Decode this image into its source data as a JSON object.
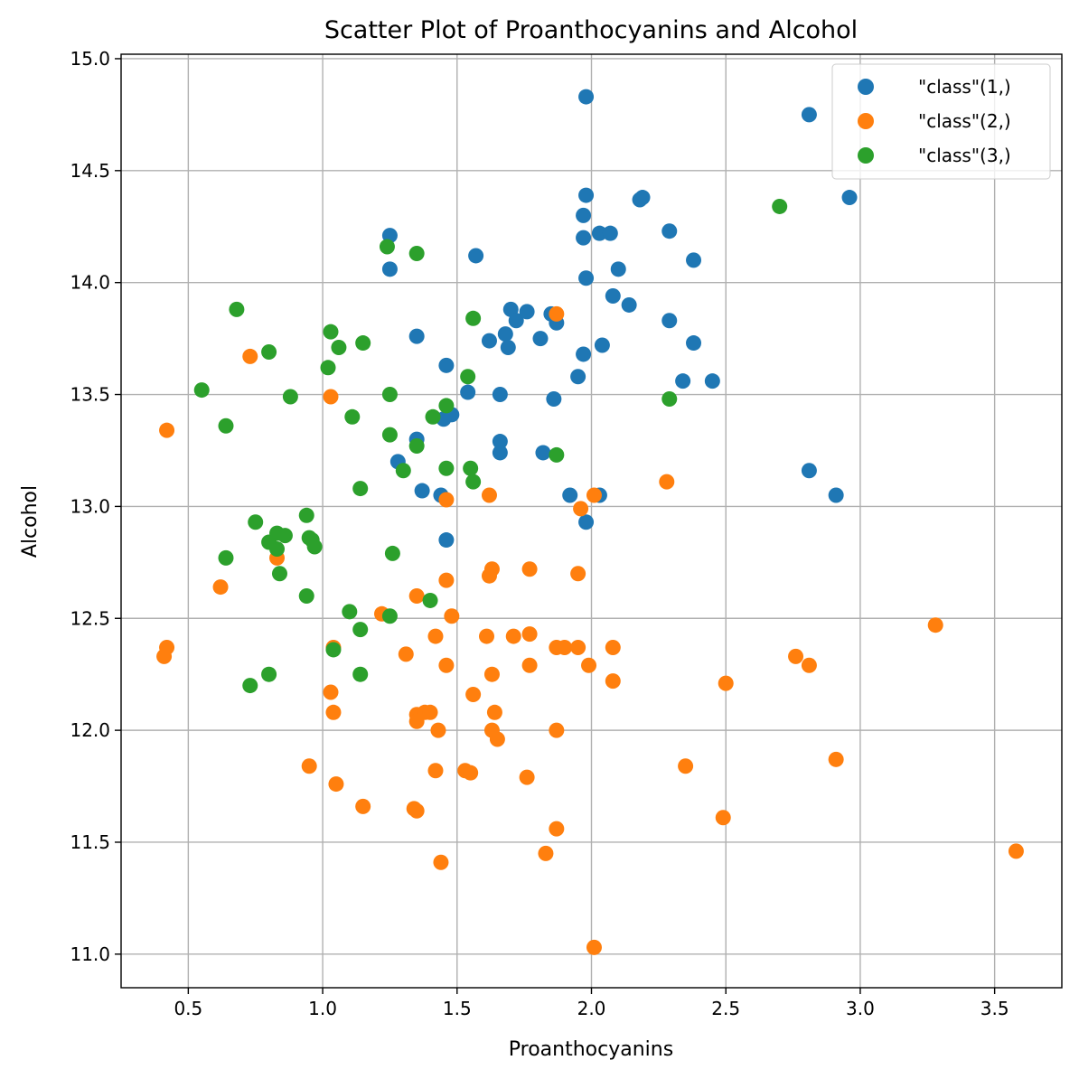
{
  "chart_data": {
    "type": "scatter",
    "title": "Scatter Plot of Proanthocyanins and Alcohol",
    "xlabel": "Proanthocyanins",
    "ylabel": "Alcohol",
    "xlim": [
      0.25,
      3.75
    ],
    "ylim": [
      10.85,
      15.02
    ],
    "xticks": [
      0.5,
      1.0,
      1.5,
      2.0,
      2.5,
      3.0,
      3.5
    ],
    "xtick_labels": [
      "0.5",
      "1.0",
      "1.5",
      "2.0",
      "2.5",
      "3.0",
      "3.5"
    ],
    "yticks": [
      11.0,
      11.5,
      12.0,
      12.5,
      13.0,
      13.5,
      14.0,
      14.5,
      15.0
    ],
    "ytick_labels": [
      "11.0",
      "11.5",
      "12.0",
      "12.5",
      "13.0",
      "13.5",
      "14.0",
      "14.5",
      "15.0"
    ],
    "grid": true,
    "legend_position": "top-right",
    "series": [
      {
        "name": "\"class\"(1,)",
        "color": "#1f77b4",
        "x": [
          1.98,
          2.81,
          2.96,
          1.98,
          2.19,
          2.18,
          1.97,
          1.25,
          2.29,
          1.97,
          2.03,
          2.07,
          1.25,
          2.38,
          1.57,
          1.98,
          2.1,
          2.08,
          2.14,
          1.7,
          1.76,
          1.72,
          1.85,
          1.87,
          1.35,
          2.29,
          1.68,
          1.62,
          1.81,
          2.38,
          1.69,
          1.97,
          2.04,
          1.46,
          1.95,
          2.34,
          2.45,
          1.54,
          1.66,
          1.86,
          1.48,
          1.45,
          1.35,
          1.66,
          1.82,
          1.66,
          1.28,
          2.81,
          1.37,
          1.44,
          1.92,
          2.03,
          2.91,
          1.98,
          1.46
        ],
        "y": [
          14.83,
          14.75,
          14.38,
          14.39,
          14.38,
          14.37,
          14.3,
          14.21,
          14.23,
          14.2,
          14.22,
          14.22,
          14.06,
          14.1,
          14.12,
          14.02,
          14.06,
          13.94,
          13.9,
          13.88,
          13.87,
          13.83,
          13.86,
          13.82,
          13.76,
          13.83,
          13.77,
          13.74,
          13.75,
          13.73,
          13.71,
          13.68,
          13.72,
          13.63,
          13.58,
          13.56,
          13.56,
          13.51,
          13.5,
          13.48,
          13.41,
          13.39,
          13.3,
          13.29,
          13.24,
          13.24,
          13.2,
          13.16,
          13.07,
          13.05,
          13.05,
          13.05,
          13.05,
          12.93,
          12.85
        ]
      },
      {
        "name": "\"class\"(2,)",
        "color": "#ff7f0e",
        "x": [
          1.87,
          0.73,
          1.03,
          0.42,
          2.28,
          1.46,
          1.62,
          2.01,
          1.96,
          0.83,
          1.77,
          1.63,
          1.62,
          1.95,
          1.46,
          0.62,
          1.35,
          1.48,
          1.22,
          3.28,
          1.42,
          1.61,
          1.71,
          1.77,
          1.87,
          1.9,
          1.95,
          2.08,
          1.04,
          0.42,
          1.31,
          2.76,
          0.41,
          1.46,
          2.81,
          1.77,
          1.99,
          2.08,
          2.5,
          1.63,
          1.03,
          1.56,
          1.35,
          1.38,
          1.4,
          1.64,
          1.04,
          1.35,
          1.43,
          1.63,
          1.87,
          1.65,
          2.91,
          0.95,
          2.35,
          1.42,
          1.53,
          1.55,
          1.76,
          1.05,
          1.15,
          1.34,
          1.35,
          2.49,
          1.87,
          3.58,
          1.83,
          1.44,
          2.01
        ],
        "y": [
          13.86,
          13.67,
          13.49,
          13.34,
          13.11,
          13.03,
          13.05,
          13.05,
          12.99,
          12.77,
          12.72,
          12.72,
          12.69,
          12.7,
          12.67,
          12.64,
          12.6,
          12.51,
          12.52,
          12.47,
          12.42,
          12.42,
          12.42,
          12.43,
          12.37,
          12.37,
          12.37,
          12.37,
          12.37,
          12.37,
          12.34,
          12.33,
          12.33,
          12.29,
          12.29,
          12.29,
          12.29,
          12.22,
          12.21,
          12.25,
          12.17,
          12.16,
          12.07,
          12.08,
          12.08,
          12.08,
          12.08,
          12.04,
          12.0,
          12.0,
          12.0,
          11.96,
          11.87,
          11.84,
          11.84,
          11.82,
          11.82,
          11.81,
          11.79,
          11.76,
          11.66,
          11.65,
          11.64,
          11.61,
          11.56,
          11.46,
          11.45,
          11.41,
          11.03
        ]
      },
      {
        "name": "\"class\"(3,)",
        "color": "#2ca02c",
        "x": [
          2.7,
          1.24,
          1.35,
          0.68,
          1.56,
          1.03,
          1.06,
          1.15,
          0.8,
          1.02,
          1.54,
          0.55,
          0.88,
          1.25,
          1.46,
          0.64,
          1.11,
          1.41,
          1.25,
          1.35,
          2.29,
          1.87,
          1.3,
          1.46,
          1.55,
          1.56,
          1.14,
          0.94,
          0.75,
          0.83,
          0.86,
          0.95,
          0.8,
          0.96,
          0.83,
          0.97,
          1.26,
          0.64,
          0.84,
          0.94,
          1.4,
          1.1,
          1.25,
          1.14,
          1.04,
          1.14,
          0.8,
          0.73
        ],
        "y": [
          14.34,
          14.16,
          14.13,
          13.88,
          13.84,
          13.78,
          13.71,
          13.73,
          13.69,
          13.62,
          13.58,
          13.52,
          13.49,
          13.5,
          13.45,
          13.36,
          13.4,
          13.4,
          13.32,
          13.27,
          13.48,
          13.23,
          13.16,
          13.17,
          13.17,
          13.11,
          13.08,
          12.96,
          12.93,
          12.88,
          12.87,
          12.86,
          12.84,
          12.85,
          12.81,
          12.82,
          12.79,
          12.77,
          12.7,
          12.6,
          12.58,
          12.53,
          12.51,
          12.45,
          12.36,
          12.25,
          12.25,
          12.2
        ]
      }
    ]
  }
}
